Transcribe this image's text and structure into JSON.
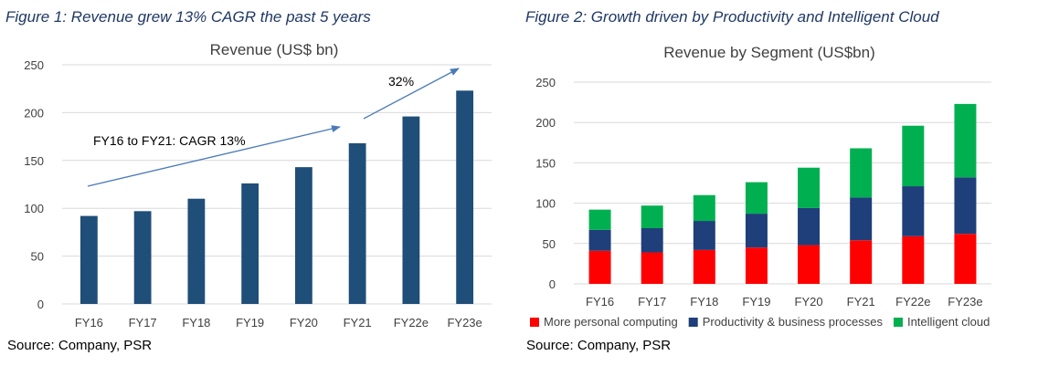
{
  "figures": [
    {
      "heading": "Figure 1: Revenue grew 13% CAGR the past 5 years",
      "source": "Source: Company, PSR"
    },
    {
      "heading": "Figure 2: Growth driven by Productivity and Intelligent Cloud",
      "source": "Source: Company, PSR"
    }
  ],
  "chart_data": [
    {
      "type": "bar",
      "title": "Revenue (US$ bn)",
      "categories": [
        "FY16",
        "FY17",
        "FY18",
        "FY19",
        "FY20",
        "FY21",
        "FY22e",
        "FY23e"
      ],
      "values": [
        92,
        97,
        110,
        126,
        143,
        168,
        196,
        223
      ],
      "ylim": [
        0,
        250
      ],
      "yticks": [
        "0",
        "50",
        "100",
        "150",
        "200",
        "250"
      ],
      "grid": true,
      "colors": {
        "bar": "#1f4e79",
        "arrow": "#4a7ab8",
        "grid": "#d9d9d9"
      },
      "annotations": [
        {
          "text": "FY16 to FY21: CAGR 13%"
        },
        {
          "text": "32%"
        }
      ]
    },
    {
      "type": "bar",
      "stacked": true,
      "title": "Revenue by Segment (US$bn)",
      "categories": [
        "FY16",
        "FY17",
        "FY18",
        "FY19",
        "FY20",
        "FY21",
        "FY22e",
        "FY23e"
      ],
      "series": [
        {
          "name": "More personal computing",
          "color": "#ff0000",
          "values": [
            41,
            39,
            42,
            45,
            48,
            54,
            59,
            62
          ]
        },
        {
          "name": "Productivity & business processes",
          "color": "#1f3f7a",
          "values": [
            26,
            30,
            36,
            42,
            46,
            53,
            62,
            70
          ]
        },
        {
          "name": "Intelligent cloud",
          "color": "#00b050",
          "values": [
            25,
            28,
            32,
            39,
            50,
            61,
            75,
            91
          ]
        }
      ],
      "ylim": [
        0,
        250
      ],
      "yticks": [
        "0",
        "50",
        "100",
        "150",
        "200",
        "250"
      ],
      "grid": true,
      "legend_position": "bottom"
    }
  ]
}
